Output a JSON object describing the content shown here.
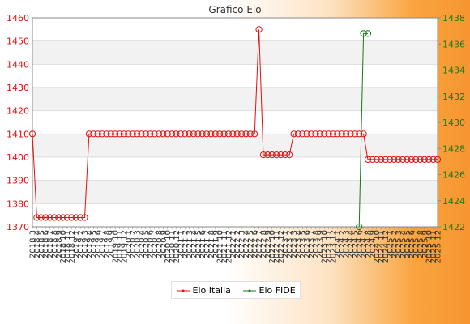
{
  "chart_data": {
    "type": "line",
    "title": "Grafico Elo",
    "categories": [
      "2018 3",
      "2018 4",
      "2018 5",
      "2018 6",
      "2018 7",
      "2018 8",
      "2018 9",
      "2018 10",
      "2018 11",
      "2018 12",
      "2019 1",
      "2019 2",
      "2019 3",
      "2019 4",
      "2019 5",
      "2019 6",
      "2019 7",
      "2019 8",
      "2019 9",
      "2019 10",
      "2019 11",
      "2019 12",
      "2020 1",
      "2020 2",
      "2020 3",
      "2020 4",
      "2020 5",
      "2020 6",
      "2020 7",
      "2020 8",
      "2020 9",
      "2020 10",
      "2020 11",
      "2020 12",
      "2021 1",
      "2021 2",
      "2021 3",
      "2021 4",
      "2021 5",
      "2021 6",
      "2021 7",
      "2021 8",
      "2021 9",
      "2021 10",
      "2021 11",
      "2021 12",
      "2022 1",
      "2022 2",
      "2022 3",
      "2022 4",
      "2022 5",
      "2022 6",
      "2022 7",
      "2022 8",
      "2022 9",
      "2022 10",
      "2022 11",
      "2022 12",
      "2023 1",
      "2023 2",
      "2023 3",
      "2023 4",
      "2023 5",
      "2023 6",
      "2023 7",
      "2023 8",
      "2023 9",
      "2023 10",
      "2023 11",
      "2023 12",
      "2024 1",
      "2024 2",
      "2024 3",
      "2024 4",
      "2024 5",
      "2024 6",
      "2024 7",
      "2024 8",
      "2024 9",
      "2024 10",
      "2024 11",
      "2024 12",
      "2025 1",
      "2025 2",
      "2025 3",
      "2025 4",
      "2025 5",
      "2025 6",
      "2025 7",
      "2025 8",
      "2025 9",
      "2025 10",
      "2025 11",
      "2025 12"
    ],
    "series": [
      {
        "name": "Elo Italia",
        "color": "#e11010",
        "axis": "left",
        "values": [
          1410,
          1374,
          1374,
          1374,
          1374,
          1374,
          1374,
          1374,
          1374,
          1374,
          1374,
          1374,
          1374,
          1410,
          1410,
          1410,
          1410,
          1410,
          1410,
          1410,
          1410,
          1410,
          1410,
          1410,
          1410,
          1410,
          1410,
          1410,
          1410,
          1410,
          1410,
          1410,
          1410,
          1410,
          1410,
          1410,
          1410,
          1410,
          1410,
          1410,
          1410,
          1410,
          1410,
          1410,
          1410,
          1410,
          1410,
          1410,
          1410,
          1410,
          1410,
          1410,
          1455,
          1401,
          1401,
          1401,
          1401,
          1401,
          1401,
          1401,
          1410,
          1410,
          1410,
          1410,
          1410,
          1410,
          1410,
          1410,
          1410,
          1410,
          1410,
          1410,
          1410,
          1410,
          1410,
          1410,
          1410,
          1399,
          1399,
          1399,
          1399,
          1399,
          1399,
          1399,
          1399,
          1399,
          1399,
          1399,
          1399,
          1399,
          1399,
          1399,
          1399,
          1399
        ]
      },
      {
        "name": "Elo FIDE",
        "color": "#1a7a1a",
        "axis": "right",
        "values": [
          null,
          null,
          null,
          null,
          null,
          null,
          null,
          null,
          null,
          null,
          null,
          null,
          null,
          null,
          null,
          null,
          null,
          null,
          null,
          null,
          null,
          null,
          null,
          null,
          null,
          null,
          null,
          null,
          null,
          null,
          null,
          null,
          null,
          null,
          null,
          null,
          null,
          null,
          null,
          null,
          null,
          null,
          null,
          null,
          null,
          null,
          null,
          null,
          null,
          null,
          null,
          null,
          null,
          null,
          null,
          null,
          null,
          null,
          null,
          null,
          null,
          null,
          null,
          null,
          null,
          null,
          null,
          null,
          null,
          null,
          null,
          null,
          null,
          null,
          null,
          1422,
          1436.8,
          1436.8,
          null,
          null,
          null,
          null,
          null,
          null,
          null,
          null,
          null,
          null,
          null,
          null,
          null,
          null,
          null,
          null
        ]
      }
    ],
    "y_left": {
      "min": 1370,
      "max": 1460,
      "ticks": [
        "1370",
        "1380",
        "1390",
        "1400",
        "1410",
        "1420",
        "1430",
        "1440",
        "1450",
        "1460"
      ],
      "color": "#e11010"
    },
    "y_right": {
      "min": 1422,
      "max": 1438,
      "ticks": [
        "1422",
        "1424",
        "1426",
        "1428",
        "1430",
        "1432",
        "1434",
        "1436",
        "1438"
      ],
      "color": "#1a7a1a"
    },
    "grid": "horizontal alternating bands",
    "legend_position": "bottom-center"
  }
}
